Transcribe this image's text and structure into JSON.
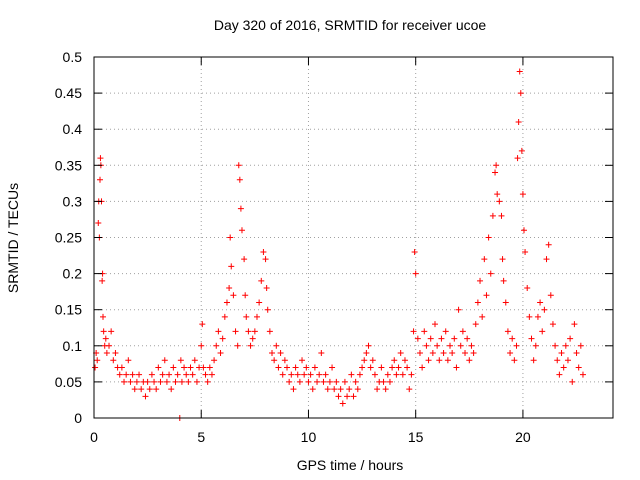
{
  "chart_data": {
    "type": "scatter",
    "title": "Day 320 of 2016, SRMTID for receiver ucoe",
    "xlabel": "GPS time / hours",
    "ylabel": "SRMTID / TECUs",
    "xlim": [
      0,
      24.2
    ],
    "ylim": [
      0,
      0.5
    ],
    "x_ticks": [
      0,
      5,
      10,
      15,
      20
    ],
    "x_tick_labels": [
      "0",
      "5",
      "10",
      "15",
      "20"
    ],
    "y_ticks": [
      0,
      0.05,
      0.1,
      0.15,
      0.2,
      0.25,
      0.3,
      0.35,
      0.4,
      0.45,
      0.5
    ],
    "y_tick_labels": [
      "0",
      "0.05",
      "0.1",
      "0.15",
      "0.2",
      "0.25",
      "0.3",
      "0.35",
      "0.4",
      "0.45",
      "0.5"
    ],
    "grid": true,
    "marker": "+",
    "series": [
      {
        "name": "SRMTID",
        "color": "#ff0000",
        "points": [
          [
            0.05,
            0.07
          ],
          [
            0.1,
            0.09
          ],
          [
            0.15,
            0.08
          ],
          [
            0.2,
            0.27
          ],
          [
            0.22,
            0.3
          ],
          [
            0.25,
            0.25
          ],
          [
            0.28,
            0.33
          ],
          [
            0.3,
            0.36
          ],
          [
            0.32,
            0.35
          ],
          [
            0.35,
            0.3
          ],
          [
            0.38,
            0.19
          ],
          [
            0.4,
            0.2
          ],
          [
            0.42,
            0.14
          ],
          [
            0.45,
            0.12
          ],
          [
            0.5,
            0.1
          ],
          [
            0.55,
            0.11
          ],
          [
            0.6,
            0.09
          ],
          [
            0.7,
            0.1
          ],
          [
            0.8,
            0.12
          ],
          [
            0.9,
            0.08
          ],
          [
            1.0,
            0.09
          ],
          [
            1.1,
            0.07
          ],
          [
            1.2,
            0.06
          ],
          [
            1.3,
            0.07
          ],
          [
            1.4,
            0.05
          ],
          [
            1.5,
            0.06
          ],
          [
            1.6,
            0.08
          ],
          [
            1.7,
            0.05
          ],
          [
            1.8,
            0.06
          ],
          [
            1.9,
            0.04
          ],
          [
            2.0,
            0.05
          ],
          [
            2.1,
            0.06
          ],
          [
            2.2,
            0.04
          ],
          [
            2.3,
            0.05
          ],
          [
            2.4,
            0.03
          ],
          [
            2.5,
            0.05
          ],
          [
            2.6,
            0.04
          ],
          [
            2.7,
            0.06
          ],
          [
            2.8,
            0.05
          ],
          [
            2.9,
            0.04
          ],
          [
            3.0,
            0.07
          ],
          [
            3.1,
            0.05
          ],
          [
            3.2,
            0.06
          ],
          [
            3.3,
            0.08
          ],
          [
            3.4,
            0.05
          ],
          [
            3.5,
            0.06
          ],
          [
            3.6,
            0.04
          ],
          [
            3.7,
            0.07
          ],
          [
            3.8,
            0.05
          ],
          [
            3.9,
            0.06
          ],
          [
            4.0,
            0.0
          ],
          [
            4.05,
            0.08
          ],
          [
            4.1,
            0.05
          ],
          [
            4.2,
            0.07
          ],
          [
            4.3,
            0.06
          ],
          [
            4.4,
            0.05
          ],
          [
            4.5,
            0.07
          ],
          [
            4.6,
            0.06
          ],
          [
            4.7,
            0.08
          ],
          [
            4.8,
            0.05
          ],
          [
            4.9,
            0.07
          ],
          [
            5.0,
            0.1
          ],
          [
            5.05,
            0.13
          ],
          [
            5.1,
            0.07
          ],
          [
            5.2,
            0.06
          ],
          [
            5.3,
            0.05
          ],
          [
            5.4,
            0.07
          ],
          [
            5.5,
            0.06
          ],
          [
            5.6,
            0.08
          ],
          [
            5.7,
            0.1
          ],
          [
            5.8,
            0.12
          ],
          [
            5.9,
            0.09
          ],
          [
            6.0,
            0.11
          ],
          [
            6.1,
            0.14
          ],
          [
            6.2,
            0.16
          ],
          [
            6.3,
            0.18
          ],
          [
            6.35,
            0.25
          ],
          [
            6.4,
            0.21
          ],
          [
            6.5,
            0.17
          ],
          [
            6.6,
            0.12
          ],
          [
            6.7,
            0.1
          ],
          [
            6.75,
            0.35
          ],
          [
            6.8,
            0.33
          ],
          [
            6.85,
            0.29
          ],
          [
            6.9,
            0.26
          ],
          [
            7.0,
            0.22
          ],
          [
            7.05,
            0.17
          ],
          [
            7.1,
            0.14
          ],
          [
            7.2,
            0.12
          ],
          [
            7.3,
            0.1
          ],
          [
            7.4,
            0.11
          ],
          [
            7.5,
            0.12
          ],
          [
            7.6,
            0.14
          ],
          [
            7.7,
            0.16
          ],
          [
            7.8,
            0.19
          ],
          [
            7.9,
            0.23
          ],
          [
            8.0,
            0.22
          ],
          [
            8.05,
            0.18
          ],
          [
            8.1,
            0.15
          ],
          [
            8.2,
            0.12
          ],
          [
            8.3,
            0.09
          ],
          [
            8.4,
            0.08
          ],
          [
            8.5,
            0.1
          ],
          [
            8.6,
            0.07
          ],
          [
            8.7,
            0.09
          ],
          [
            8.8,
            0.06
          ],
          [
            8.9,
            0.08
          ],
          [
            9.0,
            0.07
          ],
          [
            9.1,
            0.05
          ],
          [
            9.2,
            0.06
          ],
          [
            9.3,
            0.04
          ],
          [
            9.4,
            0.07
          ],
          [
            9.5,
            0.06
          ],
          [
            9.6,
            0.05
          ],
          [
            9.7,
            0.08
          ],
          [
            9.8,
            0.06
          ],
          [
            9.9,
            0.07
          ],
          [
            10.0,
            0.05
          ],
          [
            10.1,
            0.06
          ],
          [
            10.2,
            0.04
          ],
          [
            10.3,
            0.07
          ],
          [
            10.4,
            0.05
          ],
          [
            10.5,
            0.06
          ],
          [
            10.6,
            0.09
          ],
          [
            10.7,
            0.05
          ],
          [
            10.8,
            0.06
          ],
          [
            10.9,
            0.04
          ],
          [
            11.0,
            0.05
          ],
          [
            11.1,
            0.07
          ],
          [
            11.2,
            0.04
          ],
          [
            11.3,
            0.05
          ],
          [
            11.4,
            0.03
          ],
          [
            11.5,
            0.04
          ],
          [
            11.6,
            0.02
          ],
          [
            11.7,
            0.05
          ],
          [
            11.8,
            0.03
          ],
          [
            11.9,
            0.04
          ],
          [
            12.0,
            0.06
          ],
          [
            12.1,
            0.03
          ],
          [
            12.2,
            0.05
          ],
          [
            12.3,
            0.04
          ],
          [
            12.4,
            0.06
          ],
          [
            12.5,
            0.07
          ],
          [
            12.6,
            0.08
          ],
          [
            12.7,
            0.09
          ],
          [
            12.8,
            0.1
          ],
          [
            12.9,
            0.07
          ],
          [
            13.0,
            0.08
          ],
          [
            13.1,
            0.06
          ],
          [
            13.2,
            0.04
          ],
          [
            13.3,
            0.05
          ],
          [
            13.4,
            0.07
          ],
          [
            13.5,
            0.05
          ],
          [
            13.6,
            0.04
          ],
          [
            13.7,
            0.06
          ],
          [
            13.8,
            0.05
          ],
          [
            13.9,
            0.07
          ],
          [
            14.0,
            0.08
          ],
          [
            14.1,
            0.06
          ],
          [
            14.2,
            0.07
          ],
          [
            14.3,
            0.09
          ],
          [
            14.4,
            0.06
          ],
          [
            14.5,
            0.08
          ],
          [
            14.6,
            0.07
          ],
          [
            14.7,
            0.04
          ],
          [
            14.8,
            0.06
          ],
          [
            14.9,
            0.12
          ],
          [
            14.95,
            0.23
          ],
          [
            15.0,
            0.2
          ],
          [
            15.1,
            0.11
          ],
          [
            15.2,
            0.09
          ],
          [
            15.3,
            0.07
          ],
          [
            15.4,
            0.12
          ],
          [
            15.5,
            0.1
          ],
          [
            15.6,
            0.08
          ],
          [
            15.7,
            0.11
          ],
          [
            15.8,
            0.09
          ],
          [
            15.9,
            0.13
          ],
          [
            16.0,
            0.1
          ],
          [
            16.1,
            0.08
          ],
          [
            16.2,
            0.11
          ],
          [
            16.3,
            0.09
          ],
          [
            16.4,
            0.12
          ],
          [
            16.5,
            0.08
          ],
          [
            16.6,
            0.1
          ],
          [
            16.7,
            0.09
          ],
          [
            16.8,
            0.11
          ],
          [
            16.9,
            0.07
          ],
          [
            17.0,
            0.15
          ],
          [
            17.1,
            0.1
          ],
          [
            17.2,
            0.12
          ],
          [
            17.3,
            0.09
          ],
          [
            17.4,
            0.11
          ],
          [
            17.5,
            0.08
          ],
          [
            17.6,
            0.1
          ],
          [
            17.7,
            0.09
          ],
          [
            17.8,
            0.13
          ],
          [
            17.9,
            0.16
          ],
          [
            18.0,
            0.19
          ],
          [
            18.1,
            0.14
          ],
          [
            18.2,
            0.22
          ],
          [
            18.3,
            0.17
          ],
          [
            18.4,
            0.25
          ],
          [
            18.5,
            0.2
          ],
          [
            18.6,
            0.28
          ],
          [
            18.7,
            0.34
          ],
          [
            18.75,
            0.35
          ],
          [
            18.8,
            0.31
          ],
          [
            18.9,
            0.3
          ],
          [
            19.0,
            0.28
          ],
          [
            19.05,
            0.22
          ],
          [
            19.1,
            0.19
          ],
          [
            19.2,
            0.16
          ],
          [
            19.3,
            0.12
          ],
          [
            19.4,
            0.09
          ],
          [
            19.5,
            0.11
          ],
          [
            19.6,
            0.08
          ],
          [
            19.7,
            0.1
          ],
          [
            19.75,
            0.36
          ],
          [
            19.8,
            0.41
          ],
          [
            19.85,
            0.48
          ],
          [
            19.9,
            0.45
          ],
          [
            19.95,
            0.37
          ],
          [
            20.0,
            0.31
          ],
          [
            20.05,
            0.26
          ],
          [
            20.1,
            0.23
          ],
          [
            20.2,
            0.18
          ],
          [
            20.3,
            0.14
          ],
          [
            20.4,
            0.11
          ],
          [
            20.5,
            0.08
          ],
          [
            20.6,
            0.1
          ],
          [
            20.7,
            0.14
          ],
          [
            20.8,
            0.16
          ],
          [
            20.9,
            0.12
          ],
          [
            21.0,
            0.15
          ],
          [
            21.1,
            0.22
          ],
          [
            21.2,
            0.24
          ],
          [
            21.3,
            0.17
          ],
          [
            21.4,
            0.13
          ],
          [
            21.5,
            0.1
          ],
          [
            21.6,
            0.08
          ],
          [
            21.7,
            0.06
          ],
          [
            21.8,
            0.09
          ],
          [
            21.9,
            0.07
          ],
          [
            22.0,
            0.1
          ],
          [
            22.1,
            0.08
          ],
          [
            22.2,
            0.11
          ],
          [
            22.3,
            0.05
          ],
          [
            22.4,
            0.13
          ],
          [
            22.5,
            0.09
          ],
          [
            22.6,
            0.07
          ],
          [
            22.7,
            0.1
          ],
          [
            22.8,
            0.06
          ]
        ]
      }
    ]
  }
}
